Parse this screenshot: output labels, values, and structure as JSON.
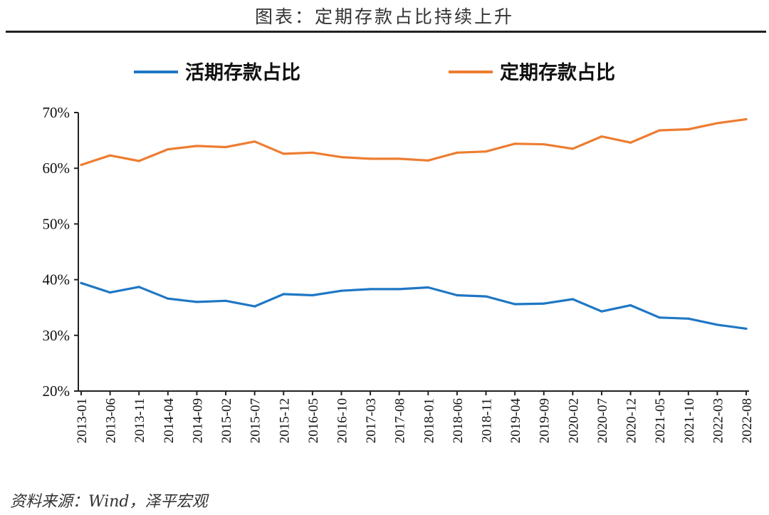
{
  "header": {
    "title": "图表：定期存款占比持续上升"
  },
  "footer": {
    "source": "资料来源：Wind，泽平宏观"
  },
  "chart_data": {
    "type": "line",
    "title": "图表：定期存款占比持续上升",
    "xlabel": "",
    "ylabel": "",
    "ylim": [
      20,
      70
    ],
    "y_ticks": [
      "20%",
      "30%",
      "40%",
      "50%",
      "60%",
      "70%"
    ],
    "x_tick_labels": [
      "2013-01",
      "2013-06",
      "2013-11",
      "2014-04",
      "2014-09",
      "2015-02",
      "2015-07",
      "2015-12",
      "2016-05",
      "2016-10",
      "2017-03",
      "2017-08",
      "2018-01",
      "2018-06",
      "2018-11",
      "2019-04",
      "2019-09",
      "2020-02",
      "2020-07",
      "2020-12",
      "2021-05",
      "2021-10",
      "2022-03",
      "2022-08"
    ],
    "legend_position": "top",
    "grid": false,
    "colors": {
      "demand": "#1f77c4",
      "time": "#ed7d31"
    },
    "x": [
      "2013-01",
      "2013-06",
      "2013-11",
      "2014-04",
      "2014-09",
      "2015-02",
      "2015-07",
      "2015-12",
      "2016-05",
      "2016-10",
      "2017-03",
      "2017-08",
      "2018-01",
      "2018-06",
      "2018-11",
      "2019-04",
      "2019-09",
      "2020-02",
      "2020-07",
      "2020-12",
      "2021-05",
      "2021-10",
      "2022-03",
      "2022-08"
    ],
    "series": [
      {
        "name": "活期存款占比",
        "color": "#1f77c4",
        "values": [
          39.4,
          37.7,
          38.7,
          36.6,
          36.0,
          36.2,
          35.2,
          37.4,
          37.2,
          38.0,
          38.3,
          38.3,
          38.6,
          37.2,
          37.0,
          35.6,
          35.7,
          36.5,
          34.3,
          35.4,
          33.2,
          33.0,
          31.9,
          31.2
        ]
      },
      {
        "name": "定期存款占比",
        "color": "#ed7d31",
        "values": [
          60.6,
          62.3,
          61.3,
          63.4,
          64.0,
          63.8,
          64.8,
          62.6,
          62.8,
          62.0,
          61.7,
          61.7,
          61.4,
          62.8,
          63.0,
          64.4,
          64.3,
          63.5,
          65.7,
          64.6,
          66.8,
          67.0,
          68.1,
          68.8
        ]
      }
    ]
  }
}
